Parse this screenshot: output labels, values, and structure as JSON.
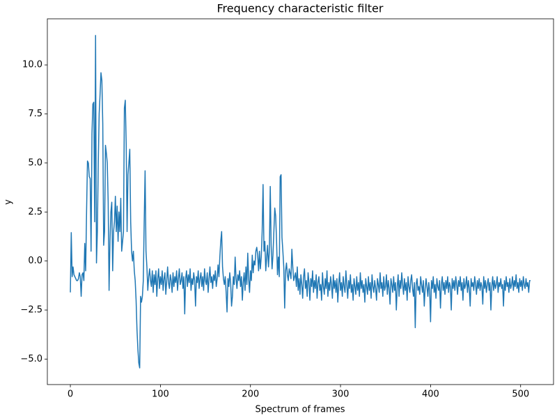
{
  "chart_data": {
    "type": "line",
    "title": "Frequency characteristic filter",
    "x_label": "Spectrum of frames",
    "y_label": "y",
    "color": "#1f77b4",
    "grid": false,
    "xlim": [
      -25.55,
      536.55
    ],
    "xticks": [
      0,
      100,
      200,
      300,
      400,
      500
    ],
    "ylim": [
      -6.3,
      12.35
    ],
    "yticks": [
      {
        "value": -5,
        "label": "−5.0"
      },
      {
        "value": -2.5,
        "label": "−2.5"
      },
      {
        "value": 0,
        "label": "0.0"
      },
      {
        "value": 2.5,
        "label": "2.5"
      },
      {
        "value": 5,
        "label": "5.0"
      },
      {
        "value": 7.5,
        "label": "7.5"
      },
      {
        "value": 10,
        "label": "10.0"
      }
    ],
    "values": [
      -1.6,
      1.45,
      -0.8,
      -0.3,
      -0.7,
      -0.8,
      -0.9,
      -1.0,
      -1.0,
      -0.9,
      -0.6,
      -0.8,
      -1.8,
      -0.7,
      -0.6,
      -1.0,
      0.9,
      -0.5,
      2.5,
      5.1,
      5.0,
      4.3,
      4.2,
      0.5,
      6.5,
      8.0,
      8.1,
      2.0,
      11.5,
      -0.1,
      1.5,
      5.0,
      7.5,
      8.5,
      9.6,
      9.2,
      7.0,
      0.8,
      1.5,
      5.9,
      5.5,
      5.0,
      3.0,
      -1.5,
      1.0,
      2.5,
      3.0,
      -0.5,
      1.5,
      2.0,
      3.3,
      1.5,
      2.8,
      1.0,
      2.5,
      1.5,
      3.2,
      0.5,
      1.0,
      1.5,
      7.8,
      8.2,
      6.0,
      1.5,
      4.4,
      5.0,
      5.7,
      2.0,
      0.5,
      0.0,
      0.5,
      -0.5,
      -1.0,
      -2.0,
      -3.5,
      -4.5,
      -5.2,
      -5.45,
      -1.8,
      -2.1,
      -1.8,
      -1.0,
      2.0,
      4.6,
      0.5,
      -0.3,
      -1.5,
      -0.8,
      -0.4,
      -1.0,
      -1.3,
      -0.5,
      -1.6,
      -0.7,
      -1.2,
      -0.5,
      -1.8,
      -0.9,
      -0.4,
      -1.4,
      -0.8,
      -1.2,
      -0.5,
      -1.5,
      -0.9,
      -0.6,
      -1.7,
      -1.0,
      -0.3,
      -1.1,
      -1.4,
      -0.7,
      -1.0,
      -1.6,
      -0.6,
      -1.3,
      -0.8,
      -1.1,
      -0.5,
      -1.5,
      -0.9,
      -0.4,
      -1.2,
      -1.0,
      -0.6,
      -1.4,
      -0.8,
      -2.7,
      -0.9,
      -0.5,
      -1.3,
      -0.7,
      -1.1,
      -0.4,
      -1.5,
      -0.9,
      -1.2,
      -0.6,
      -1.0,
      -2.3,
      -0.8,
      -1.1,
      -0.5,
      -1.4,
      -0.9,
      -0.6,
      -1.3,
      -0.8,
      -1.5,
      -0.4,
      -1.0,
      -1.2,
      -0.6,
      -1.6,
      -0.9,
      -0.3,
      -1.1,
      -0.8,
      -1.4,
      -0.7,
      -1.0,
      -0.5,
      -1.3,
      -0.9,
      -0.2,
      -0.8,
      0.2,
      1.0,
      1.5,
      -0.3,
      -0.9,
      -1.2,
      -0.8,
      -1.6,
      -2.6,
      -0.9,
      -1.3,
      -0.6,
      -1.1,
      -2.3,
      -1.8,
      -0.8,
      -1.2,
      0.2,
      -0.9,
      -1.4,
      -0.7,
      -1.0,
      -0.5,
      -1.3,
      -0.8,
      -2.0,
      -1.1,
      -0.6,
      -1.5,
      -0.3,
      -1.2,
      0.4,
      -0.9,
      -1.6,
      -0.5,
      -1.0,
      0.3,
      -0.6,
      0.0,
      -0.2,
      0.5,
      0.7,
      0.3,
      -0.5,
      0.5,
      -0.4,
      0.2,
      1.5,
      3.9,
      0.5,
      1.0,
      -0.5,
      0.2,
      0.8,
      -0.3,
      0.5,
      3.8,
      0.8,
      -0.4,
      0.3,
      1.5,
      2.7,
      2.3,
      1.0,
      -0.7,
      0.2,
      -0.8,
      4.3,
      4.4,
      1.2,
      0.5,
      -0.3,
      -2.4,
      -0.5,
      -0.1,
      -0.7,
      -1.0,
      -0.4,
      -0.6,
      -0.9,
      0.6,
      -0.3,
      -1.0,
      -0.8,
      -0.6,
      -1.3,
      -0.3,
      -1.5,
      -0.9,
      -1.7,
      -0.7,
      -1.2,
      -1.9,
      -0.8,
      -0.4,
      -1.4,
      -1.0,
      -1.8,
      -0.6,
      -1.1,
      -2.0,
      -0.9,
      -1.3,
      -0.5,
      -1.6,
      -1.0,
      -1.4,
      -0.7,
      -1.9,
      -1.1,
      -0.8,
      -1.5,
      -1.2,
      -2.0,
      -0.6,
      -1.3,
      -1.7,
      -0.9,
      -1.4,
      -0.5,
      -1.8,
      -1.1,
      -1.5,
      -0.8,
      -1.2,
      -1.9,
      -0.7,
      -1.4,
      -1.0,
      -1.6,
      -0.9,
      -2.1,
      -1.2,
      -0.6,
      -1.5,
      -1.1,
      -1.8,
      -0.8,
      -1.3,
      -1.6,
      -0.5,
      -1.2,
      -1.9,
      -1.0,
      -1.4,
      -0.7,
      -1.6,
      -1.2,
      -2.0,
      -0.9,
      -1.3,
      -1.7,
      -0.8,
      -1.5,
      -1.1,
      -1.8,
      -0.6,
      -1.4,
      -1.0,
      -1.6,
      -1.2,
      -2.1,
      -0.9,
      -1.3,
      -1.7,
      -0.8,
      -1.5,
      -1.1,
      -1.9,
      -0.7,
      -1.3,
      -1.6,
      -1.0,
      -1.4,
      -2.0,
      -0.9,
      -1.2,
      -1.6,
      -0.6,
      -1.4,
      -1.1,
      -1.8,
      -0.8,
      -1.5,
      -1.3,
      -0.7,
      -1.7,
      -1.0,
      -1.4,
      -2.2,
      -0.9,
      -1.2,
      -1.6,
      -0.8,
      -1.5,
      -1.1,
      -2.5,
      -1.3,
      -0.7,
      -1.8,
      -1.0,
      -1.4,
      -0.6,
      -1.2,
      -1.7,
      -0.9,
      -1.5,
      -1.1,
      -2.0,
      -0.8,
      -1.3,
      -1.6,
      -1.0,
      -0.7,
      -1.4,
      -1.8,
      -1.1,
      -3.4,
      -1.2,
      -0.9,
      -1.5,
      -1.3,
      -1.7,
      -0.8,
      -1.2,
      -1.6,
      -1.0,
      -2.3,
      -1.4,
      -0.9,
      -1.3,
      -1.8,
      -1.1,
      -1.5,
      -3.1,
      -1.0,
      -1.4,
      -0.8,
      -1.6,
      -1.2,
      -1.9,
      -0.9,
      -1.3,
      -1.5,
      -1.0,
      -2.4,
      -1.2,
      -0.8,
      -1.5,
      -1.1,
      -1.7,
      -1.0,
      -1.4,
      -0.8,
      -1.6,
      -1.1,
      -1.3,
      -2.5,
      -0.9,
      -1.4,
      -1.0,
      -1.5,
      -0.8,
      -1.2,
      -1.7,
      -1.0,
      -1.3,
      -0.8,
      -1.5,
      -1.1,
      -2.0,
      -0.9,
      -1.4,
      -1.2,
      -0.8,
      -1.6,
      -1.0,
      -1.4,
      -2.3,
      -0.9,
      -1.3,
      -1.1,
      -1.5,
      -0.8,
      -1.2,
      -1.7,
      -1.0,
      -1.4,
      -0.9,
      -1.5,
      -1.1,
      -1.3,
      -2.2,
      -0.8,
      -1.4,
      -1.0,
      -1.6,
      -1.2,
      -0.9,
      -1.5,
      -1.1,
      -2.5,
      -1.3,
      -0.8,
      -1.5,
      -1.0,
      -1.4,
      -1.2,
      -0.8,
      -1.6,
      -1.1,
      -1.3,
      -0.9,
      -1.4,
      -1.2,
      -2.3,
      -1.0,
      -1.5,
      -0.8,
      -1.3,
      -1.1,
      -1.6,
      -0.9,
      -1.4,
      -1.2,
      -0.8,
      -1.5,
      -1.0,
      -1.3,
      -0.7,
      -1.4,
      -1.1,
      -1.6,
      -0.9,
      -1.3,
      -1.0,
      -1.5,
      -0.8,
      -1.2,
      -1.4,
      -0.9,
      -1.3,
      -1.1,
      -1.6,
      -1.0,
      -1.0
    ]
  }
}
